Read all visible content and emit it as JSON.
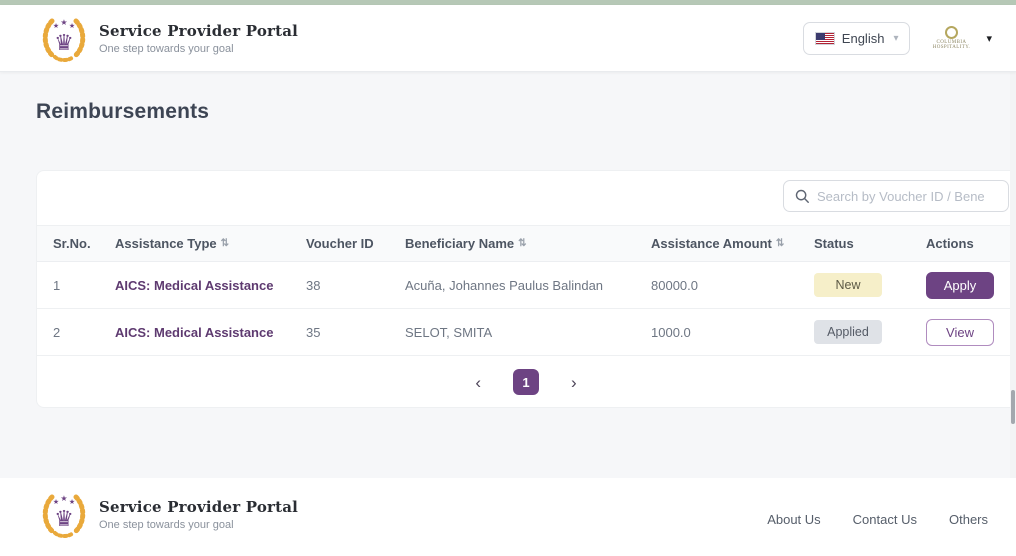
{
  "theme": {
    "accent": "#6d4383",
    "top_strip": "#b6c8b6",
    "badge_new_bg": "#f6efc9",
    "badge_applied_bg": "#dfe2e7"
  },
  "header": {
    "brand": {
      "title": "Service Provider Portal",
      "tagline": "One step towards your goal"
    },
    "language_selector": {
      "label": "English",
      "flag": "us-flag",
      "caret": "▾"
    },
    "account": {
      "org_line1": "Columbia",
      "org_line2": "Hospitality.",
      "caret": "▾"
    }
  },
  "page": {
    "title": "Reimbursements"
  },
  "toolbar": {
    "search_placeholder": "Search by Voucher ID / Bene"
  },
  "table": {
    "columns": [
      {
        "label": "Sr.No.",
        "sortable": false
      },
      {
        "label": "Assistance Type",
        "sortable": true
      },
      {
        "label": "Voucher ID",
        "sortable": false
      },
      {
        "label": "Beneficiary Name",
        "sortable": true
      },
      {
        "label": "Assistance Amount",
        "sortable": true
      },
      {
        "label": "Status",
        "sortable": false
      },
      {
        "label": "Actions",
        "sortable": false
      }
    ],
    "sort_icon": "⇅",
    "rows": [
      {
        "sr_no": "1",
        "assistance_type": "AICS: Medical Assistance",
        "voucher_id": "38",
        "beneficiary_name": "Acuña, Johannes Paulus Balindan",
        "assistance_amount": "80000.0",
        "status": "New",
        "action_label": "Apply",
        "action_variant": "filled"
      },
      {
        "sr_no": "2",
        "assistance_type": "AICS: Medical Assistance",
        "voucher_id": "35",
        "beneficiary_name": "SELOT, SMITA",
        "assistance_amount": "1000.0",
        "status": "Applied",
        "action_label": "View",
        "action_variant": "outline"
      }
    ]
  },
  "pagination": {
    "prev": "‹",
    "current_page": "1",
    "next": "›"
  },
  "footer": {
    "brand": {
      "title": "Service Provider Portal",
      "tagline": "One step towards your goal"
    },
    "links": [
      "About Us",
      "Contact Us",
      "Others"
    ]
  }
}
